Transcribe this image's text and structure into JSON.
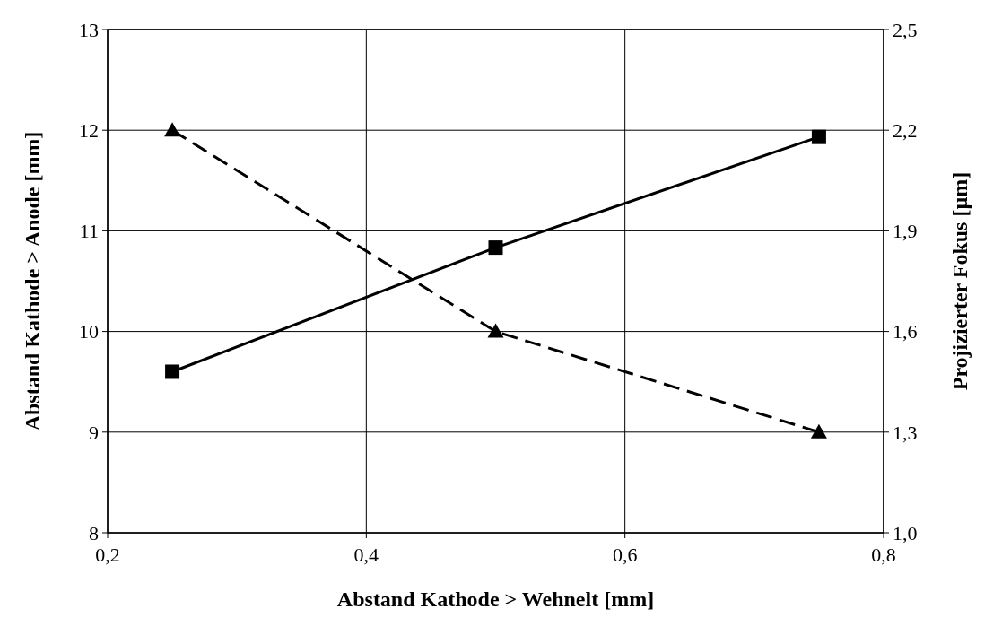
{
  "chart_data": {
    "type": "line",
    "xlabel": "Abstand Kathode > Wehnelt [mm]",
    "ylabel": "Abstand Kathode > Anode [mm]",
    "y2label": "Projizierter Fokus [µm]",
    "x": [
      0.25,
      0.5,
      0.75
    ],
    "xlim": [
      0.2,
      0.8
    ],
    "xticks": [
      {
        "value": 0.2,
        "label": "0,2"
      },
      {
        "value": 0.4,
        "label": "0,4"
      },
      {
        "value": 0.6,
        "label": "0,6"
      },
      {
        "value": 0.8,
        "label": "0,8"
      }
    ],
    "ylim": [
      8,
      13
    ],
    "yticks": [
      8,
      9,
      10,
      11,
      12,
      13
    ],
    "y2lim": [
      1.0,
      2.5
    ],
    "y2ticks": [
      {
        "value": 1.0,
        "label": "1,0"
      },
      {
        "value": 1.3,
        "label": "1,3"
      },
      {
        "value": 1.6,
        "label": "1,6"
      },
      {
        "value": 1.9,
        "label": "1,9"
      },
      {
        "value": 2.2,
        "label": "2,2"
      },
      {
        "value": 2.5,
        "label": "2,5"
      }
    ],
    "grid": true,
    "series": [
      {
        "color": "#000000",
        "values": [
          12,
          10,
          9
        ],
        "marker": "triangle",
        "line_style": "dashed"
      },
      {
        "color": "#000000",
        "values": [
          1.48,
          1.85,
          2.18
        ],
        "axis": "y2",
        "marker": "square",
        "line_style": "solid"
      }
    ]
  }
}
